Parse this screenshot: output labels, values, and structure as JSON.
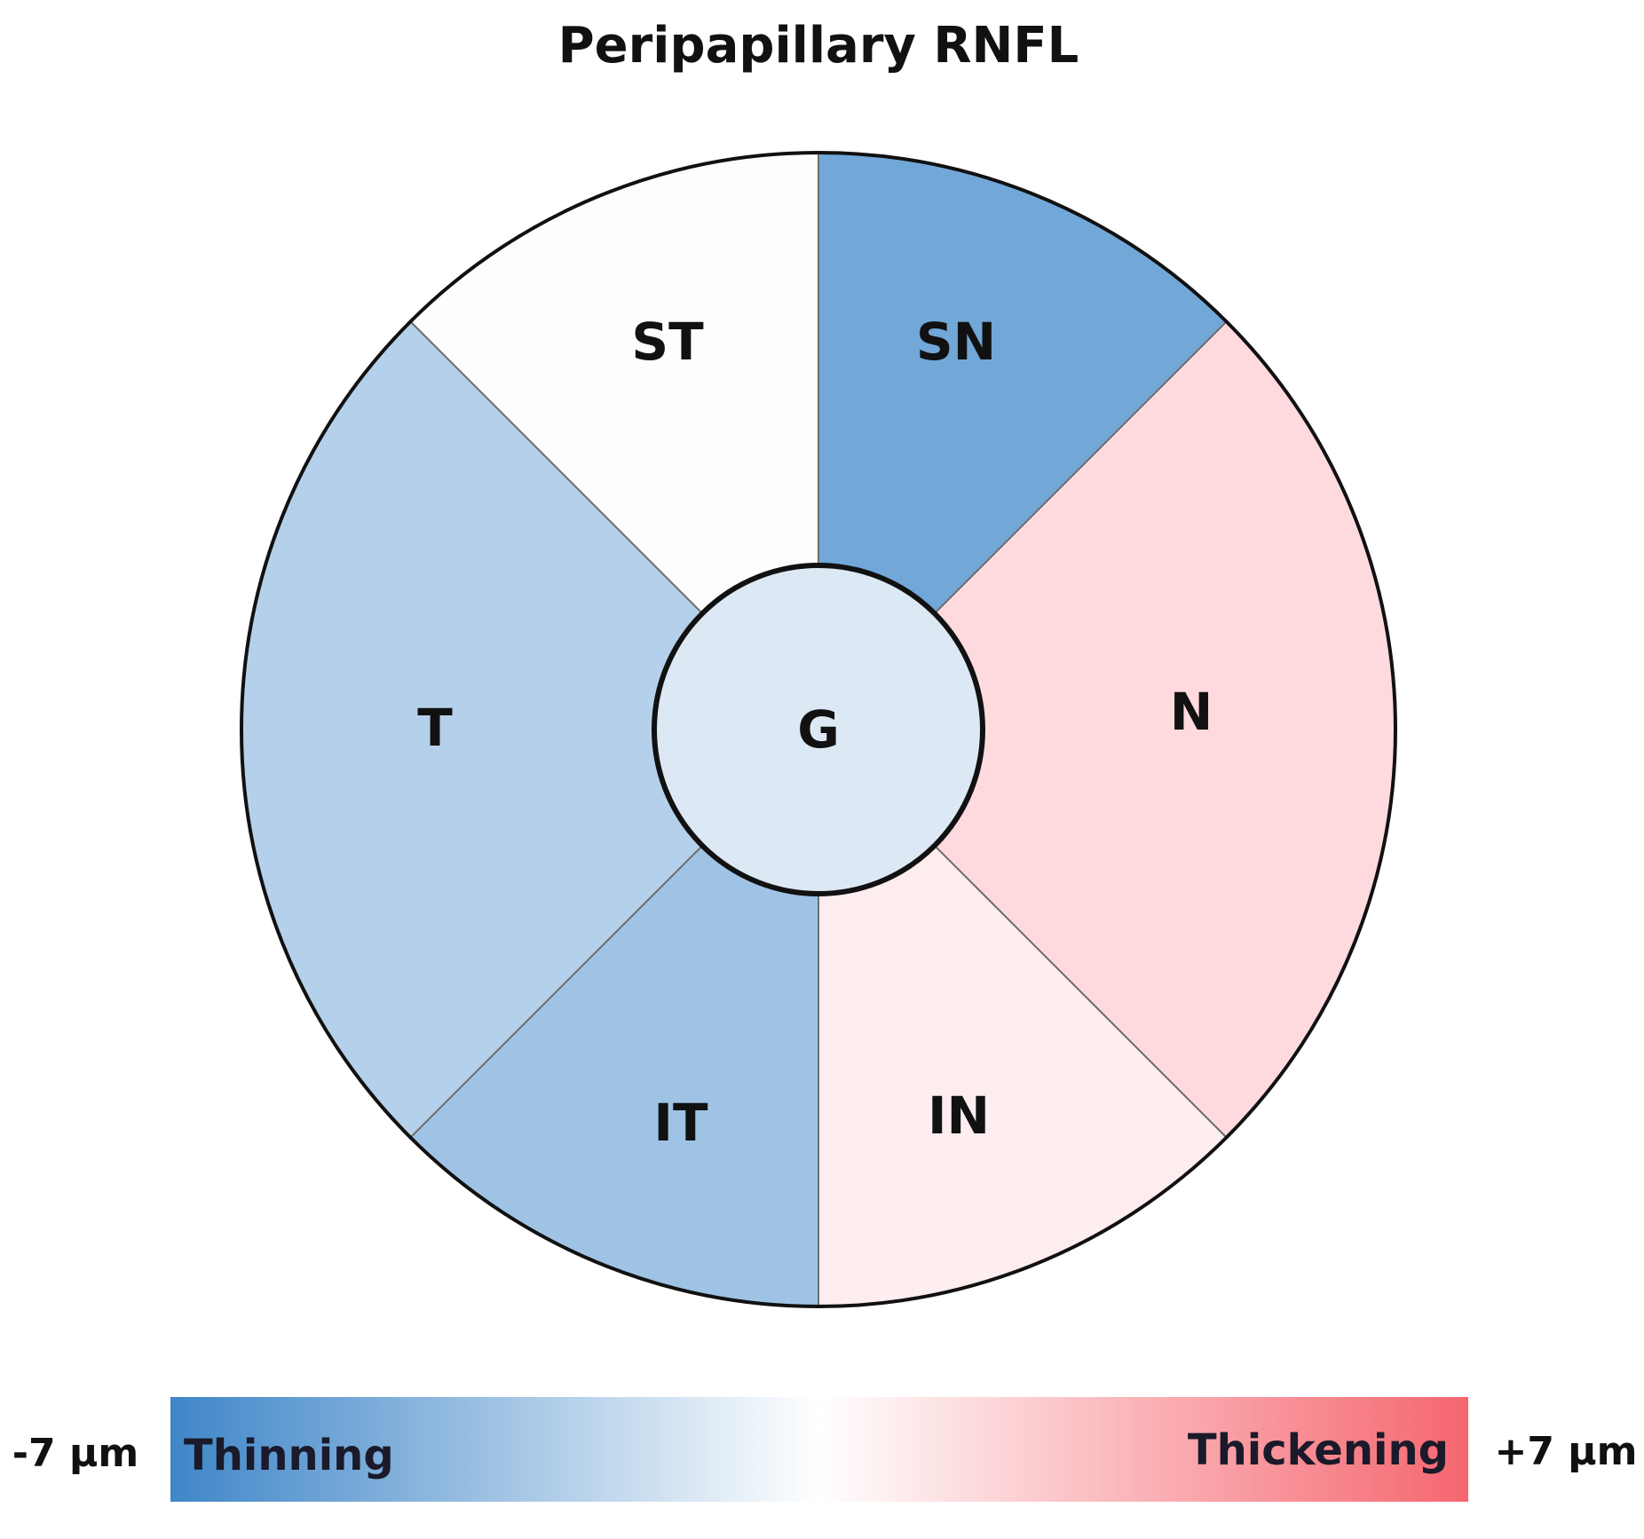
{
  "title": "Peripapillary RNFL",
  "sectors": [
    {
      "id": "ST",
      "label": "ST",
      "color": "#fcfdff"
    },
    {
      "id": "SN",
      "label": "SN",
      "color": "#72a8d8"
    },
    {
      "id": "N",
      "label": "N",
      "color": "#fedadf"
    },
    {
      "id": "IN",
      "label": "IN",
      "color": "#feedef"
    },
    {
      "id": "IT",
      "label": "IT",
      "color": "#9fc3e5"
    },
    {
      "id": "T",
      "label": "T",
      "color": "#b5d0ea"
    }
  ],
  "center": {
    "id": "G",
    "label": "G",
    "color": "#dde8f5"
  },
  "colorbar": {
    "min_label": "-7 µm",
    "max_label": "+7 µm",
    "left_word": "Thinning",
    "right_word": "Thickening",
    "color_min": "#3f86c8",
    "color_mid": "#ffffff",
    "color_max": "#f5666f"
  }
}
